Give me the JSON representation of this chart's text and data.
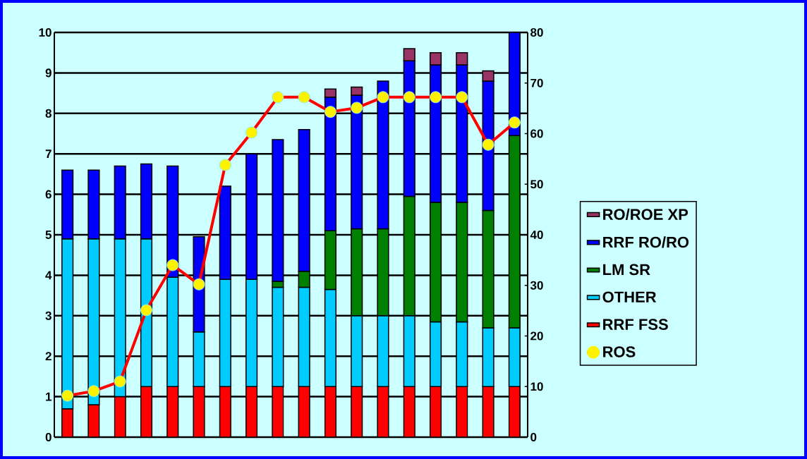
{
  "chart_data": {
    "type": "bar",
    "stacked": true,
    "categories": [
      null,
      null,
      null,
      null,
      null,
      null,
      null,
      null,
      null,
      null,
      null,
      null,
      null,
      null,
      null,
      null,
      null,
      null
    ],
    "series": [
      {
        "name": "RRF FSS",
        "color": "#ff0000",
        "values": [
          0.7,
          0.8,
          1.0,
          1.25,
          1.25,
          1.25,
          1.25,
          1.25,
          1.25,
          1.25,
          1.25,
          1.25,
          1.25,
          1.25,
          1.25,
          1.25,
          1.25,
          1.25
        ]
      },
      {
        "name": "OTHER",
        "color": "#00ccff",
        "values": [
          4.2,
          4.1,
          3.9,
          3.65,
          2.7,
          1.35,
          2.65,
          2.65,
          2.45,
          2.45,
          2.4,
          1.75,
          1.75,
          1.75,
          1.6,
          1.6,
          1.45,
          1.45
        ]
      },
      {
        "name": "LM SR",
        "color": "#008000",
        "values": [
          0,
          0,
          0,
          0,
          0,
          0,
          0,
          0,
          0.15,
          0.4,
          1.45,
          2.15,
          2.15,
          2.95,
          2.95,
          2.95,
          2.9,
          4.75
        ]
      },
      {
        "name": "RRF RO/RO",
        "color": "#0000ff",
        "values": [
          1.7,
          1.7,
          1.8,
          1.85,
          2.75,
          2.35,
          2.3,
          3.1,
          3.5,
          3.5,
          3.3,
          3.3,
          3.65,
          3.35,
          3.4,
          3.4,
          3.2,
          2.55
        ]
      },
      {
        "name": "RO/ROE XP",
        "color": "#993366",
        "values": [
          0,
          0,
          0,
          0,
          0,
          0,
          0,
          0,
          0,
          0,
          0.2,
          0.2,
          0,
          0.3,
          0.3,
          0.3,
          0.25,
          0
        ]
      },
      {
        "name": "ROS",
        "type": "line",
        "axis": "y2",
        "color": "#ff0000",
        "marker": "circle",
        "values": [
          8.2,
          9.1,
          11,
          25.1,
          34,
          30.2,
          53.8,
          60.2,
          67.2,
          67.2,
          64.3,
          65.1,
          67.2,
          67.2,
          67.2,
          67.2,
          57.8,
          62.2
        ]
      }
    ],
    "ylim": [
      0,
      10
    ],
    "yticks": [
      0,
      1,
      2,
      3,
      4,
      5,
      6,
      7,
      8,
      9,
      10
    ],
    "y2lim": [
      0,
      80
    ],
    "y2ticks": [
      0,
      10,
      20,
      30,
      40,
      50,
      60,
      70,
      80
    ],
    "grid": "y",
    "legend": "right"
  }
}
